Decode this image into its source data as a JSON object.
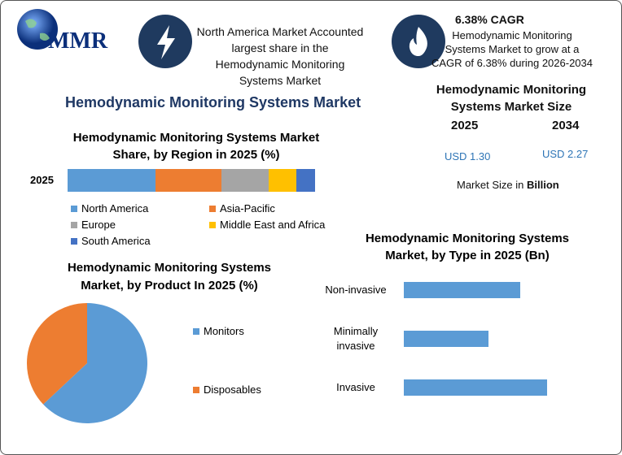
{
  "logo": {
    "text": "MMR"
  },
  "highlights": [
    {
      "text": "North America Market Accounted largest share in the Hemodynamic Monitoring Systems Market"
    },
    {
      "heading": "6.38% CAGR",
      "text": "Hemodynamic Monitoring Systems Market to grow at a CAGR of 6.38% during 2026-2034"
    }
  ],
  "title": "Hemodynamic Monitoring Systems Market",
  "market_size": {
    "title": "Hemodynamic Monitoring Systems Market Size",
    "years": [
      "2025",
      "2034"
    ],
    "values": [
      "USD 1.30",
      "USD 2.27"
    ],
    "note": "Market Size in",
    "note_unit": "Billion"
  },
  "chart_data": [
    {
      "type": "stacked_bar",
      "title": "Hemodynamic Monitoring Systems Market Share, by Region in 2025 (%)",
      "categories": [
        "2025"
      ],
      "series": [
        {
          "name": "North America",
          "color": "#5b9bd5",
          "values": [
            35.5
          ]
        },
        {
          "name": "Asia-Pacific",
          "color": "#ed7d31",
          "values": [
            26.6
          ]
        },
        {
          "name": "Europe",
          "color": "#a5a5a5",
          "values": [
            19.1
          ]
        },
        {
          "name": "Middle East and Africa",
          "color": "#ffc000",
          "values": [
            11.2
          ]
        },
        {
          "name": "South America",
          "color": "#4472c4",
          "values": [
            7.6
          ]
        }
      ]
    },
    {
      "type": "pie",
      "title": "Hemodynamic Monitoring Systems Market, by Product In 2025 (%)",
      "categories": [
        "Monitors",
        "Disposables"
      ],
      "values": [
        63,
        37
      ],
      "colors": [
        "#5b9bd5",
        "#ed7d31"
      ]
    },
    {
      "type": "bar",
      "title": "Hemodynamic Monitoring Systems Market, by Type in 2025 (Bn)",
      "categories": [
        "Non-invasive",
        "Minimally invasive",
        "Invasive"
      ],
      "values": [
        0.44,
        0.32,
        0.54
      ],
      "color": "#5b9bd5"
    }
  ]
}
